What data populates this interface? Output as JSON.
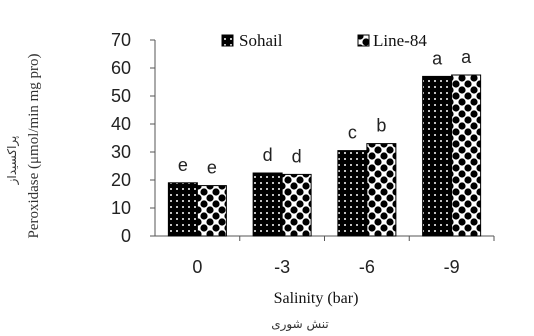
{
  "chart_data": {
    "type": "bar",
    "categories": [
      "0",
      "-3",
      "-6",
      "-9"
    ],
    "series": [
      {
        "name": "Sohail",
        "values": [
          19,
          22.5,
          30.5,
          57
        ],
        "letters": [
          "e",
          "d",
          "c",
          "a"
        ],
        "pattern": "dots-on-black"
      },
      {
        "name": "Line-84",
        "values": [
          18,
          22,
          33,
          57.5
        ],
        "letters": [
          "e",
          "d",
          "b",
          "a"
        ],
        "pattern": "checker-white"
      }
    ],
    "ylim": [
      0,
      70
    ],
    "yticks": [
      "0",
      "10",
      "20",
      "30",
      "40",
      "50",
      "60",
      "70"
    ],
    "xlabel": "Salinity (bar)",
    "xlabel_fa": "تنش شوری",
    "ylabel": "Peroxidase (μmol/min mg pro)",
    "ylabel_fa": "پراکسیداز",
    "legend": "top",
    "grid": false
  }
}
